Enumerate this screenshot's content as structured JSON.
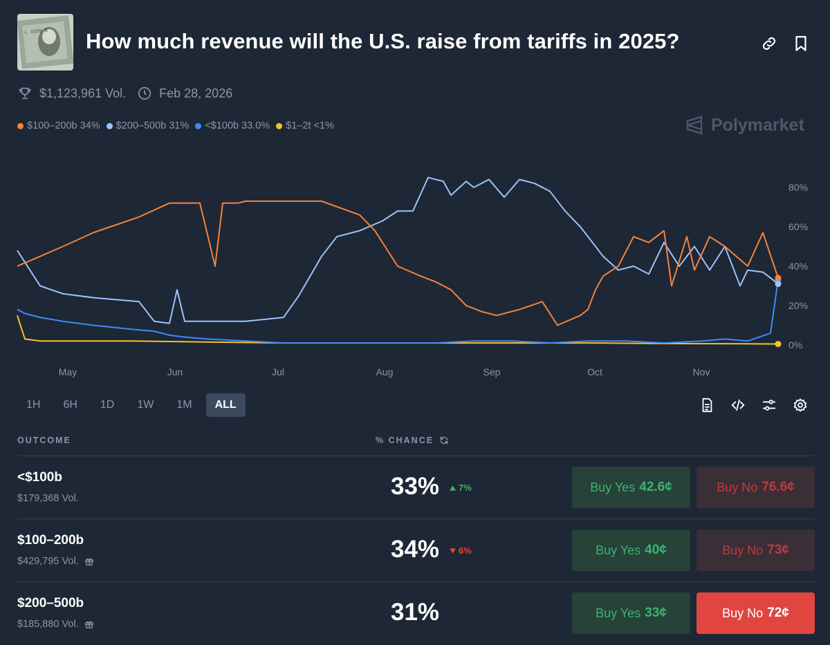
{
  "market": {
    "title": "How much revenue will the U.S. raise from tariffs in 2025?",
    "volume": "$1,123,961 Vol.",
    "end_date": "Feb 28, 2026",
    "brand": "Polymarket"
  },
  "legend": [
    {
      "label": "$100–200b 34%",
      "color": "#f5843c"
    },
    {
      "label": "$200–500b 31%",
      "color": "#9cc3ff"
    },
    {
      "label": "<$100b 33.0%",
      "color": "#3d8bfd"
    },
    {
      "label": "$1–2t <1%",
      "color": "#f7c22a"
    }
  ],
  "chart_data": {
    "type": "line",
    "x_ticks": [
      "May",
      "Jun",
      "Jul",
      "Aug",
      "Sep",
      "Oct",
      "Nov"
    ],
    "y_ticks": [
      "80%",
      "60%",
      "40%",
      "20%",
      "0%"
    ],
    "ylim": [
      0,
      90
    ],
    "grid": true,
    "series": [
      {
        "name": "$100–200b",
        "color": "#f5843c",
        "x": [
          0,
          3,
          6,
          10,
          16,
          20,
          24,
          26,
          27,
          28,
          29,
          30,
          35,
          40,
          45,
          47,
          50,
          53,
          55,
          57,
          59,
          61,
          63,
          66,
          69,
          71,
          74,
          75,
          76,
          77,
          79,
          81,
          83,
          85,
          86,
          88,
          89,
          91,
          93,
          96,
          98,
          100
        ],
        "values": [
          40,
          45,
          50,
          57,
          65,
          72,
          72,
          40,
          72,
          72,
          72,
          73,
          73,
          73,
          66,
          58,
          40,
          35,
          32,
          28,
          20,
          17,
          15,
          18,
          22,
          10,
          15,
          18,
          28,
          35,
          40,
          55,
          52,
          58,
          30,
          55,
          38,
          55,
          50,
          40,
          57,
          34
        ]
      },
      {
        "name": "$200–500b",
        "color": "#9cc3ff",
        "x": [
          0,
          3,
          6,
          10,
          16,
          18,
          20,
          21,
          22,
          25,
          30,
          35,
          37,
          40,
          42,
          45,
          48,
          50,
          52,
          54,
          56,
          57,
          59,
          60,
          62,
          64,
          66,
          68,
          70,
          72,
          74,
          76,
          77,
          79,
          81,
          83,
          85,
          87,
          89,
          91,
          93,
          95,
          96,
          98,
          100
        ],
        "values": [
          48,
          30,
          26,
          24,
          22,
          12,
          11,
          28,
          12,
          12,
          12,
          14,
          25,
          45,
          55,
          58,
          63,
          68,
          68,
          85,
          83,
          76,
          83,
          80,
          84,
          75,
          84,
          82,
          78,
          68,
          60,
          50,
          45,
          38,
          40,
          36,
          52,
          40,
          50,
          38,
          50,
          30,
          38,
          37,
          31
        ]
      },
      {
        "name": "<$100b",
        "color": "#3d8bfd",
        "x": [
          0,
          1,
          3,
          6,
          10,
          15,
          18,
          20,
          22,
          25,
          30,
          35,
          40,
          45,
          50,
          55,
          60,
          65,
          70,
          75,
          80,
          85,
          90,
          93,
          96,
          99,
          100
        ],
        "values": [
          18,
          16,
          14,
          12,
          10,
          8,
          7,
          5,
          4,
          3,
          2,
          1,
          1,
          1,
          1,
          1,
          2,
          2,
          1,
          2,
          2,
          1,
          2,
          3,
          2,
          6,
          33
        ]
      },
      {
        "name": "$1–2t",
        "color": "#f7c22a",
        "x": [
          0,
          1,
          3,
          8,
          15,
          25,
          35,
          45,
          55,
          65,
          75,
          85,
          95,
          100
        ],
        "values": [
          15,
          3,
          2,
          2,
          2,
          1.5,
          1,
          1,
          1,
          1,
          1,
          0.7,
          0.6,
          0.5
        ]
      }
    ]
  },
  "ranges": [
    "1H",
    "6H",
    "1D",
    "1W",
    "1M",
    "ALL"
  ],
  "active_range": "ALL",
  "table": {
    "col_outcome": "OUTCOME",
    "col_chance": "% CHANCE",
    "rows": [
      {
        "name": "<$100b",
        "volume": "$179,368 Vol.",
        "chance": "33%",
        "change": "7%",
        "change_dir": "up",
        "yes_label": "Buy Yes",
        "yes_price": "42.6¢",
        "no_label": "Buy No",
        "no_price": "76.6¢"
      },
      {
        "name": "$100–200b",
        "volume": "$429,795 Vol.",
        "chance": "34%",
        "change": "6%",
        "change_dir": "down",
        "yes_label": "Buy Yes",
        "yes_price": "40¢",
        "no_label": "Buy No",
        "no_price": "73¢"
      },
      {
        "name": "$200–500b",
        "volume": "$185,880 Vol.",
        "chance": "31%",
        "change": "",
        "change_dir": "",
        "yes_label": "Buy Yes",
        "yes_price": "33¢",
        "no_label": "Buy No",
        "no_price": "72¢"
      }
    ]
  }
}
